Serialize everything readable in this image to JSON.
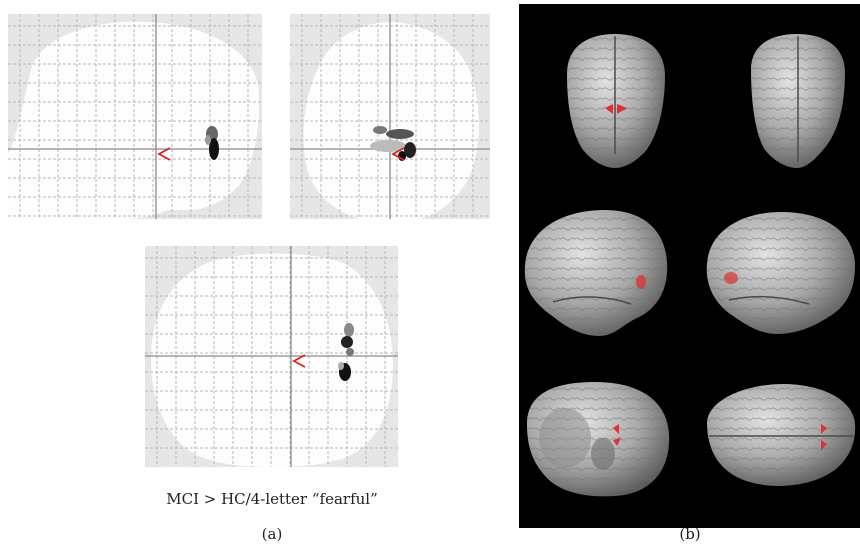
{
  "figure": {
    "panel_a": {
      "views": [
        {
          "view": "sagittal"
        },
        {
          "view": "coronal"
        },
        {
          "view": "axial"
        }
      ],
      "contrast_label": "MCI > HC/4-letter “fearful”",
      "panel_label": "(a)"
    },
    "panel_b": {
      "renders": [
        {
          "view": "anterior"
        },
        {
          "view": "posterior"
        },
        {
          "view": "right-lateral"
        },
        {
          "view": "left-lateral"
        },
        {
          "view": "inferior"
        },
        {
          "view": "superior"
        }
      ],
      "panel_label": "(b)"
    }
  },
  "colors": {
    "glass_background": "#e6e6e6",
    "brain_fill": "#fdfdfd",
    "grid_line": "#b8b8b8",
    "crosshair": "#8a8a8a",
    "cursor_arrow": "#e02020",
    "activation_overlay": "#e03030",
    "render_background": "#000000",
    "cortex_surface": "#b5b5b5"
  }
}
